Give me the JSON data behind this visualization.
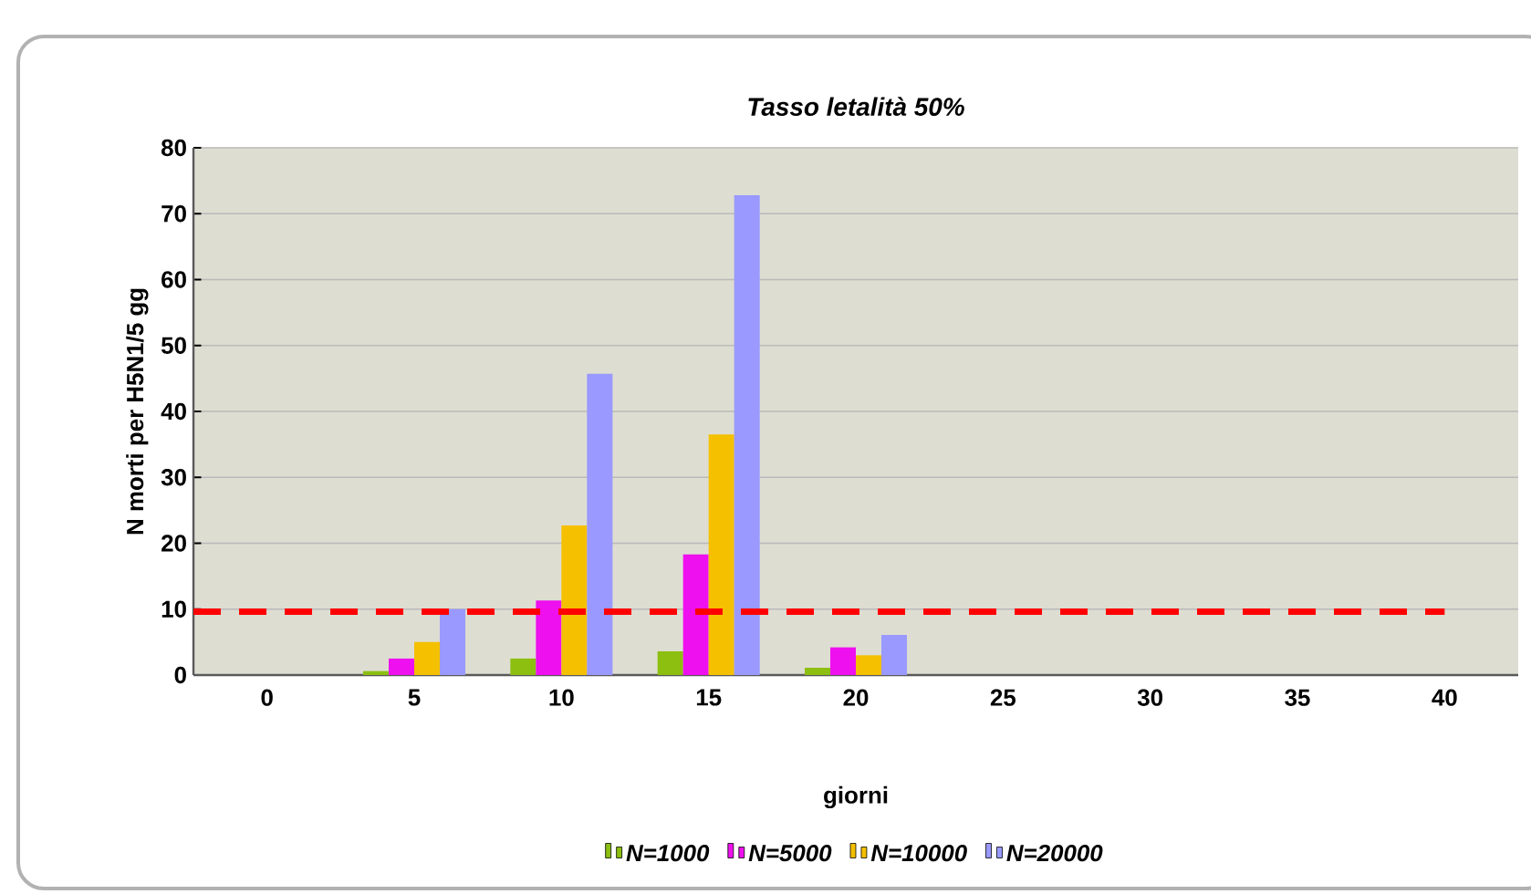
{
  "chart_data": {
    "type": "bar",
    "title": "Tasso letalità 50%",
    "xlabel": "giorni",
    "ylabel": "N morti per H5N1/5 gg",
    "categories": [
      "0",
      "5",
      "10",
      "15",
      "20",
      "25",
      "30",
      "35",
      "40"
    ],
    "series": [
      {
        "name": "N=1000",
        "color": "#8cbf10",
        "values": [
          0,
          0.6,
          2.5,
          3.6,
          1.1,
          0,
          0,
          0,
          0
        ]
      },
      {
        "name": "N=5000",
        "color": "#ee10ee",
        "values": [
          0,
          2.5,
          11.3,
          18.3,
          4.2,
          0,
          0,
          0,
          0
        ]
      },
      {
        "name": "N=10000",
        "color": "#f4c000",
        "values": [
          0,
          5.0,
          22.7,
          36.5,
          3.0,
          0,
          0,
          0,
          0
        ]
      },
      {
        "name": "N=20000",
        "color": "#9999ff",
        "values": [
          0,
          10.0,
          45.7,
          72.8,
          6.1,
          0,
          0,
          0,
          0
        ]
      }
    ],
    "ylim": [
      0,
      80
    ],
    "yticks": [
      0,
      10,
      20,
      30,
      40,
      50,
      60,
      70,
      80
    ],
    "grid": "y",
    "legend": "bottom",
    "ref_lines": [
      {
        "axis": "y",
        "value": 9.6,
        "color": "#ff0000",
        "line_style": "dashed"
      }
    ]
  }
}
